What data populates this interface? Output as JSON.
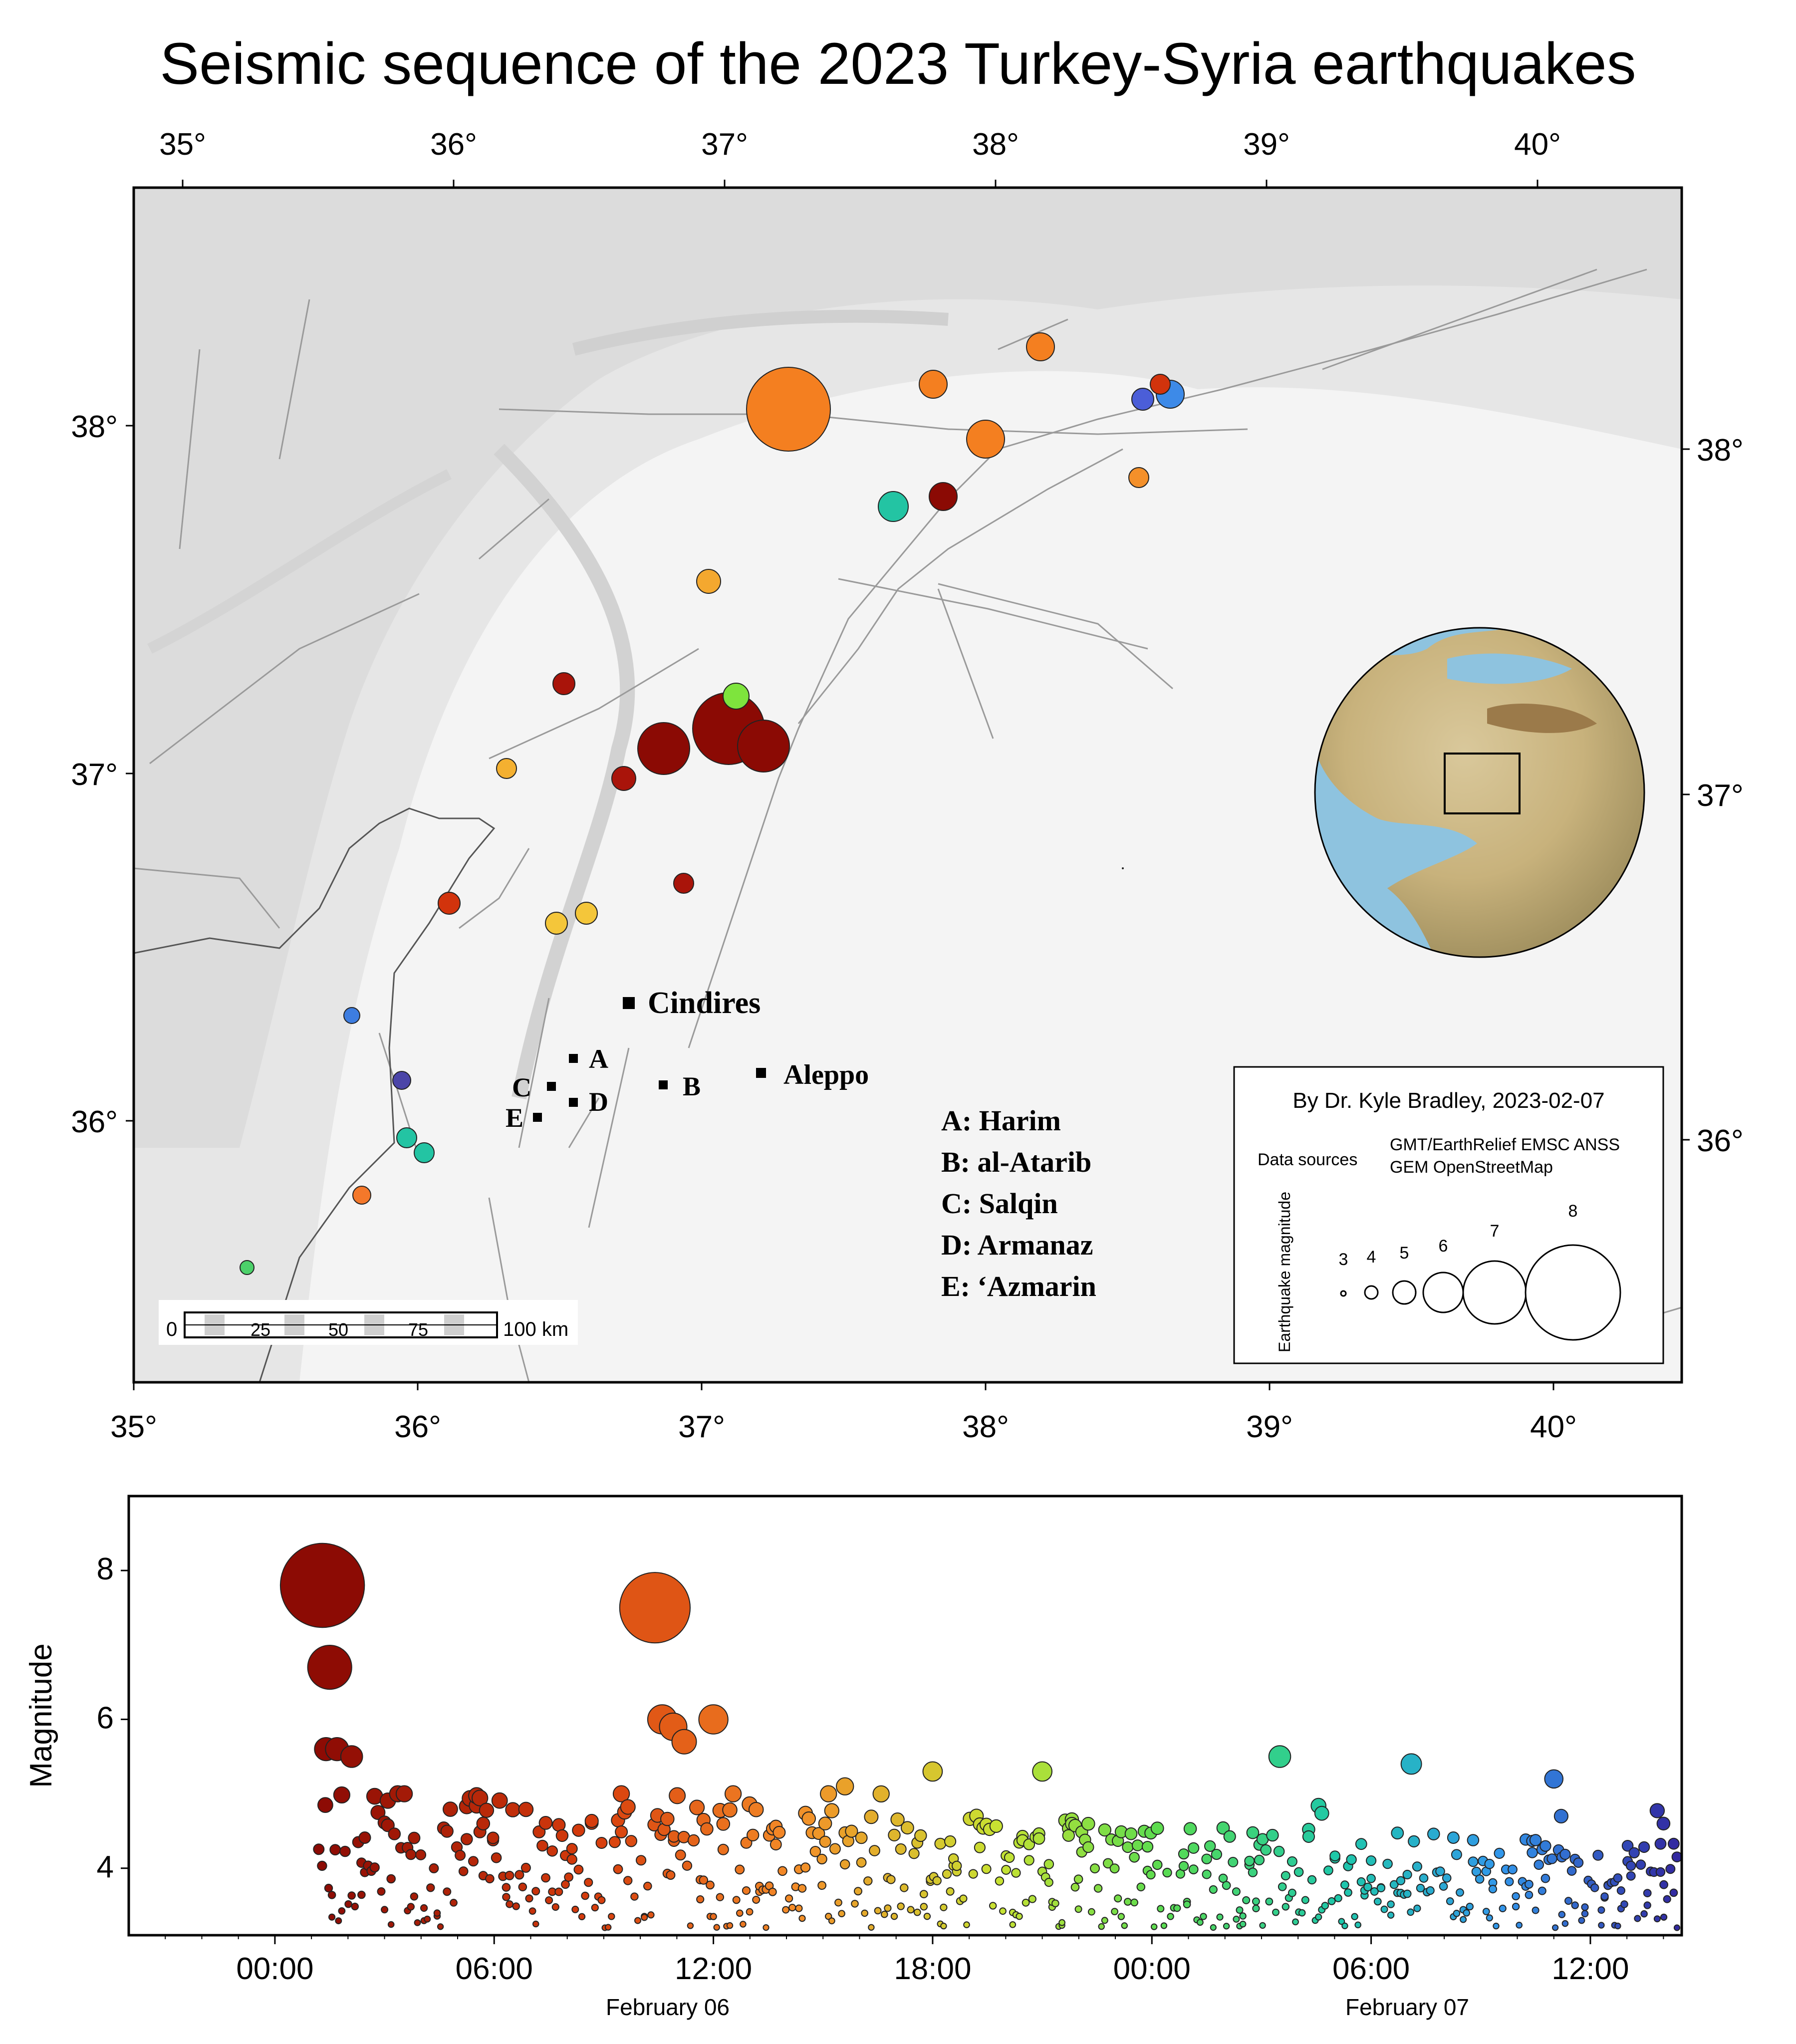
{
  "title": "Seismic sequence of the 2023 Turkey-Syria earthquakes",
  "map": {
    "lon_ticks_top": [
      "35°",
      "36°",
      "37°",
      "38°",
      "39°",
      "40°"
    ],
    "lon_ticks_bottom": [
      "35°",
      "36°",
      "37°",
      "38°",
      "39°",
      "40°"
    ],
    "lat_ticks_left": [
      "38°",
      "37°",
      "36°"
    ],
    "lat_ticks_right": [
      "38°",
      "37°",
      "36°"
    ],
    "cities": [
      {
        "name": "Cindires",
        "size": "large"
      },
      {
        "name": "Aleppo",
        "size": "medium"
      },
      {
        "name": "A",
        "size": "small"
      },
      {
        "name": "B",
        "size": "small"
      },
      {
        "name": "C",
        "size": "small"
      },
      {
        "name": "D",
        "size": "small"
      },
      {
        "name": "E",
        "size": "small"
      }
    ],
    "key_lines": [
      "A: Harim",
      "B: al-Atarib",
      "C: Salqin",
      "D: Armanaz",
      "E: ‘Azmarin"
    ],
    "scale_bar": {
      "labels": [
        "0",
        "25",
        "50",
        "75",
        "100 km"
      ]
    },
    "legend": {
      "credit": "By Dr. Kyle Bradley, 2023-02-07",
      "sources_label": "Data sources",
      "sources_line1": "GMT/EarthRelief EMSC ANSS",
      "sources_line2": "GEM OpenStreetMap",
      "magnitude_title": "Earthquake magnitude",
      "magnitudes": [
        "3",
        "4",
        "5",
        "6",
        "7",
        "8"
      ]
    },
    "inset": {
      "description_visible": false
    }
  },
  "chart_data": {
    "type": "scatter",
    "ylabel": "Magnitude",
    "ylim": [
      3.1,
      9
    ],
    "yticks": [
      "4",
      "6",
      "8"
    ],
    "x_ticks": [
      "00:00",
      "06:00",
      "12:00",
      "18:00",
      "00:00",
      "06:00",
      "12:00"
    ],
    "x_date_labels": [
      "February 06",
      "February 07"
    ],
    "x_range_hours": [
      -4,
      38.5
    ],
    "color_scale": "time (dark red → orange → yellow → green → cyan → blue)",
    "highlight_events": [
      {
        "hour": 1.3,
        "mag": 7.8
      },
      {
        "hour": 1.5,
        "mag": 6.7
      },
      {
        "hour": 1.4,
        "mag": 5.6
      },
      {
        "hour": 1.7,
        "mag": 5.6
      },
      {
        "hour": 2.1,
        "mag": 5.5
      },
      {
        "hour": 10.4,
        "mag": 7.5
      },
      {
        "hour": 10.6,
        "mag": 6.0
      },
      {
        "hour": 10.9,
        "mag": 5.9
      },
      {
        "hour": 11.2,
        "mag": 5.7
      },
      {
        "hour": 12.0,
        "mag": 6.0
      },
      {
        "hour": 15.6,
        "mag": 5.1
      },
      {
        "hour": 18.0,
        "mag": 5.3
      },
      {
        "hour": 21.0,
        "mag": 5.3
      },
      {
        "hour": 27.5,
        "mag": 5.5
      },
      {
        "hour": 31.1,
        "mag": 5.4
      },
      {
        "hour": 35.0,
        "mag": 5.2
      },
      {
        "hour": 35.2,
        "mag": 4.7
      },
      {
        "hour": 38.0,
        "mag": 4.6
      }
    ]
  }
}
